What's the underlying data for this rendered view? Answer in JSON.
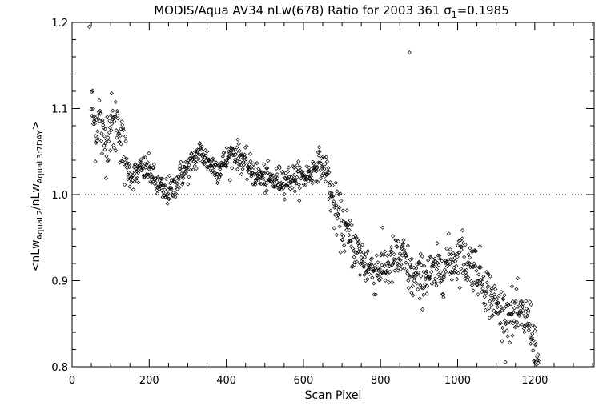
{
  "chart_data": {
    "type": "scatter",
    "title_main": "MODIS/Aqua AV34 nLw(678) Ratio for 2003 361 ",
    "title_sigma": "σ",
    "title_sub": "1",
    "title_value": "=0.1985",
    "xlabel": "Scan Pixel",
    "ylabel": {
      "prefix": "<nLw",
      "sub1": "AquaL2",
      "mid": "/nLw",
      "sub2": "AquaL3:7DAY",
      "suffix": ">"
    },
    "xlim": [
      0,
      1354
    ],
    "ylim": [
      0.8,
      1.2
    ],
    "xticks": [
      0,
      200,
      400,
      600,
      800,
      1000,
      1200
    ],
    "yticks": [
      0.8,
      0.9,
      1.0,
      1.1,
      1.2
    ],
    "xtick_labels": [
      "0",
      "200",
      "400",
      "600",
      "800",
      "1000",
      "1200"
    ],
    "ytick_labels": [
      "0.8",
      "0.9",
      "1.0",
      "1.1",
      "1.2"
    ],
    "reference_line": 1.0,
    "marker": "diamond",
    "profile_points": [
      [
        45,
        1.195
      ],
      [
        50,
        1.105
      ],
      [
        60,
        1.075
      ],
      [
        70,
        1.095
      ],
      [
        80,
        1.06
      ],
      [
        90,
        1.068
      ],
      [
        100,
        1.082
      ],
      [
        110,
        1.078
      ],
      [
        120,
        1.085
      ],
      [
        130,
        1.055
      ],
      [
        140,
        1.035
      ],
      [
        150,
        1.025
      ],
      [
        160,
        1.022
      ],
      [
        170,
        1.025
      ],
      [
        180,
        1.03
      ],
      [
        200,
        1.028
      ],
      [
        220,
        1.012
      ],
      [
        240,
        1.002
      ],
      [
        260,
        1.006
      ],
      [
        280,
        1.022
      ],
      [
        300,
        1.03
      ],
      [
        320,
        1.042
      ],
      [
        330,
        1.05
      ],
      [
        340,
        1.046
      ],
      [
        360,
        1.035
      ],
      [
        380,
        1.03
      ],
      [
        400,
        1.04
      ],
      [
        420,
        1.05
      ],
      [
        440,
        1.042
      ],
      [
        460,
        1.03
      ],
      [
        480,
        1.022
      ],
      [
        500,
        1.018
      ],
      [
        520,
        1.016
      ],
      [
        540,
        1.017
      ],
      [
        560,
        1.018
      ],
      [
        580,
        1.02
      ],
      [
        600,
        1.02
      ],
      [
        620,
        1.025
      ],
      [
        640,
        1.038
      ],
      [
        660,
        1.028
      ],
      [
        670,
        1.005
      ],
      [
        680,
        0.985
      ],
      [
        700,
        0.965
      ],
      [
        720,
        0.948
      ],
      [
        740,
        0.933
      ],
      [
        760,
        0.92
      ],
      [
        780,
        0.912
      ],
      [
        800,
        0.915
      ],
      [
        820,
        0.918
      ],
      [
        840,
        0.925
      ],
      [
        860,
        0.925
      ],
      [
        880,
        0.905
      ],
      [
        900,
        0.9
      ],
      [
        920,
        0.908
      ],
      [
        940,
        0.906
      ],
      [
        960,
        0.915
      ],
      [
        980,
        0.922
      ],
      [
        1000,
        0.926
      ],
      [
        1010,
        0.936
      ],
      [
        1020,
        0.92
      ],
      [
        1040,
        0.92
      ],
      [
        1060,
        0.905
      ],
      [
        1080,
        0.888
      ],
      [
        1100,
        0.87
      ],
      [
        1120,
        0.862
      ],
      [
        1140,
        0.86
      ],
      [
        1160,
        0.858
      ],
      [
        1180,
        0.855
      ],
      [
        1190,
        0.85
      ],
      [
        1200,
        0.825
      ],
      [
        1210,
        0.8
      ]
    ],
    "scatter_spread": 0.008,
    "noise_sections": [
      {
        "x": [
          45,
          140
        ],
        "spread": 0.018
      },
      {
        "x": [
          140,
          660
        ],
        "spread": 0.008
      },
      {
        "x": [
          660,
          1210
        ],
        "spread": 0.014
      }
    ],
    "point_count": 1130,
    "outliers": [
      [
        45,
        1.195
      ],
      [
        875,
        1.165
      ]
    ]
  }
}
